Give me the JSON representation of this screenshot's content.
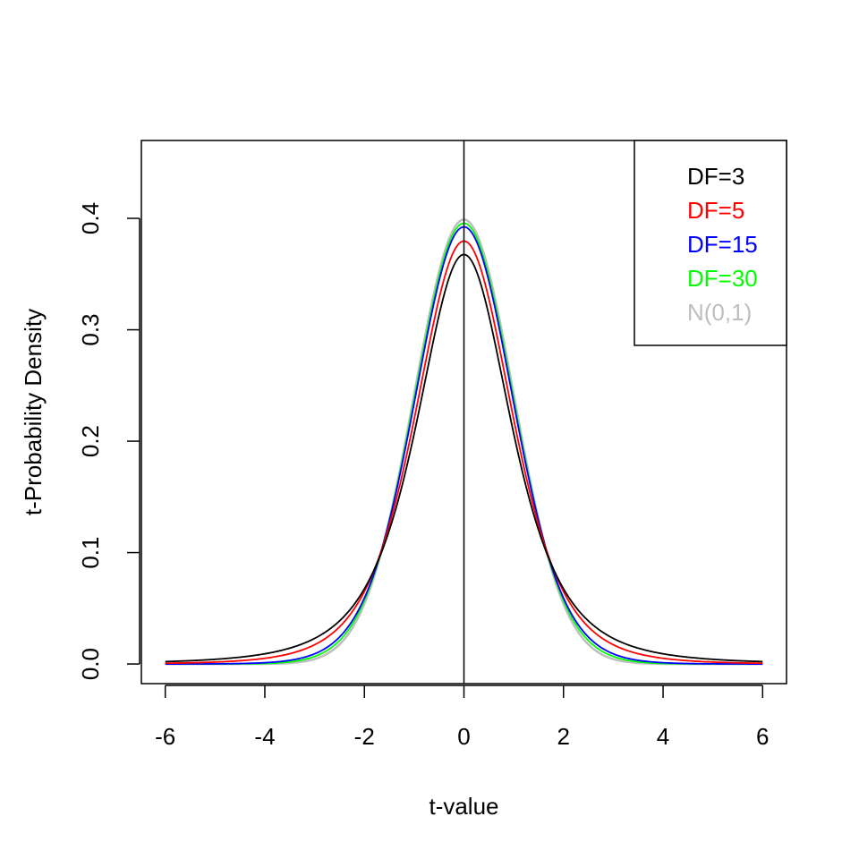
{
  "chart_data": {
    "type": "line",
    "title": "",
    "xlabel": "t-value",
    "ylabel": "t-Probability Density",
    "xlim": [
      -6.48,
      6.48
    ],
    "ylim": [
      -0.0176,
      0.4699
    ],
    "x_ticks": [
      -6,
      -4,
      -2,
      0,
      2,
      4,
      6
    ],
    "x_tick_labels": [
      "-6",
      "-4",
      "-2",
      "0",
      "2",
      "4",
      "6"
    ],
    "y_ticks": [
      0.0,
      0.1,
      0.2,
      0.3,
      0.4
    ],
    "y_tick_labels": [
      "0.0",
      "0.1",
      "0.2",
      "0.3",
      "0.4"
    ],
    "grid": false,
    "legend_position": "top-right",
    "vertical_reference_line": {
      "x": 0,
      "color": "#000000"
    },
    "series": [
      {
        "name": "DF=3",
        "color": "#000000",
        "distribution": "t",
        "df": 3,
        "x": [
          -6,
          -5,
          -4,
          -3,
          -2,
          -1.5,
          -1,
          -0.5,
          0,
          0.5,
          1,
          1.5,
          2,
          3,
          4,
          5,
          6
        ],
        "y": [
          0.0042,
          0.0073,
          0.014,
          0.023,
          0.0675,
          0.1148,
          0.2067,
          0.3125,
          0.3676,
          0.3125,
          0.2067,
          0.1148,
          0.0675,
          0.023,
          0.014,
          0.0073,
          0.0042
        ]
      },
      {
        "name": "DF=5",
        "color": "#ff0000",
        "distribution": "t",
        "df": 5,
        "x": [
          -6,
          -5,
          -4,
          -3,
          -2,
          -1.5,
          -1,
          -0.5,
          0,
          0.5,
          1,
          1.5,
          2,
          3,
          4,
          5,
          6
        ],
        "y": [
          0.0018,
          0.0018,
          0.0051,
          0.0173,
          0.0651,
          0.1245,
          0.2197,
          0.3279,
          0.3796,
          0.3279,
          0.2197,
          0.1245,
          0.0651,
          0.0173,
          0.0051,
          0.0018,
          0.0018
        ]
      },
      {
        "name": "DF=15",
        "color": "#0000ff",
        "distribution": "t",
        "df": 15,
        "x": [
          -6,
          -5,
          -4,
          -3,
          -2,
          -1.5,
          -1,
          -0.5,
          0,
          0.5,
          1,
          1.5,
          2,
          3,
          4,
          5,
          6
        ],
        "y": [
          5e-05,
          0.0003,
          0.0015,
          0.0091,
          0.0585,
          0.1271,
          0.236,
          0.345,
          0.3916,
          0.345,
          0.236,
          0.1271,
          0.0585,
          0.0091,
          0.0015,
          0.0003,
          5e-05
        ]
      },
      {
        "name": "DF=30",
        "color": "#00ff00",
        "distribution": "t",
        "df": 30,
        "x": [
          -6,
          -5,
          -4,
          -3,
          -2,
          -1.5,
          -1,
          -0.5,
          0,
          0.5,
          1,
          1.5,
          2,
          3,
          4,
          5,
          6
        ],
        "y": [
          1e-05,
          0.0001,
          0.0005,
          0.0066,
          0.0563,
          0.1281,
          0.2383,
          0.3485,
          0.3956,
          0.3485,
          0.2383,
          0.1281,
          0.0563,
          0.0066,
          0.0005,
          0.0001,
          1e-05
        ]
      },
      {
        "name": "N(0,1)",
        "color": "#bebebe",
        "distribution": "normal",
        "df": null,
        "x": [
          -6,
          -5,
          -4,
          -3,
          -2,
          -1.5,
          -1,
          -0.5,
          0,
          0.5,
          1,
          1.5,
          2,
          3,
          4,
          5,
          6
        ],
        "y": [
          0.0,
          1.5e-06,
          0.0001,
          0.0044,
          0.054,
          0.1295,
          0.242,
          0.3521,
          0.3989,
          0.3521,
          0.242,
          0.1295,
          0.054,
          0.0044,
          0.0001,
          1.5e-06,
          0.0
        ]
      }
    ]
  }
}
